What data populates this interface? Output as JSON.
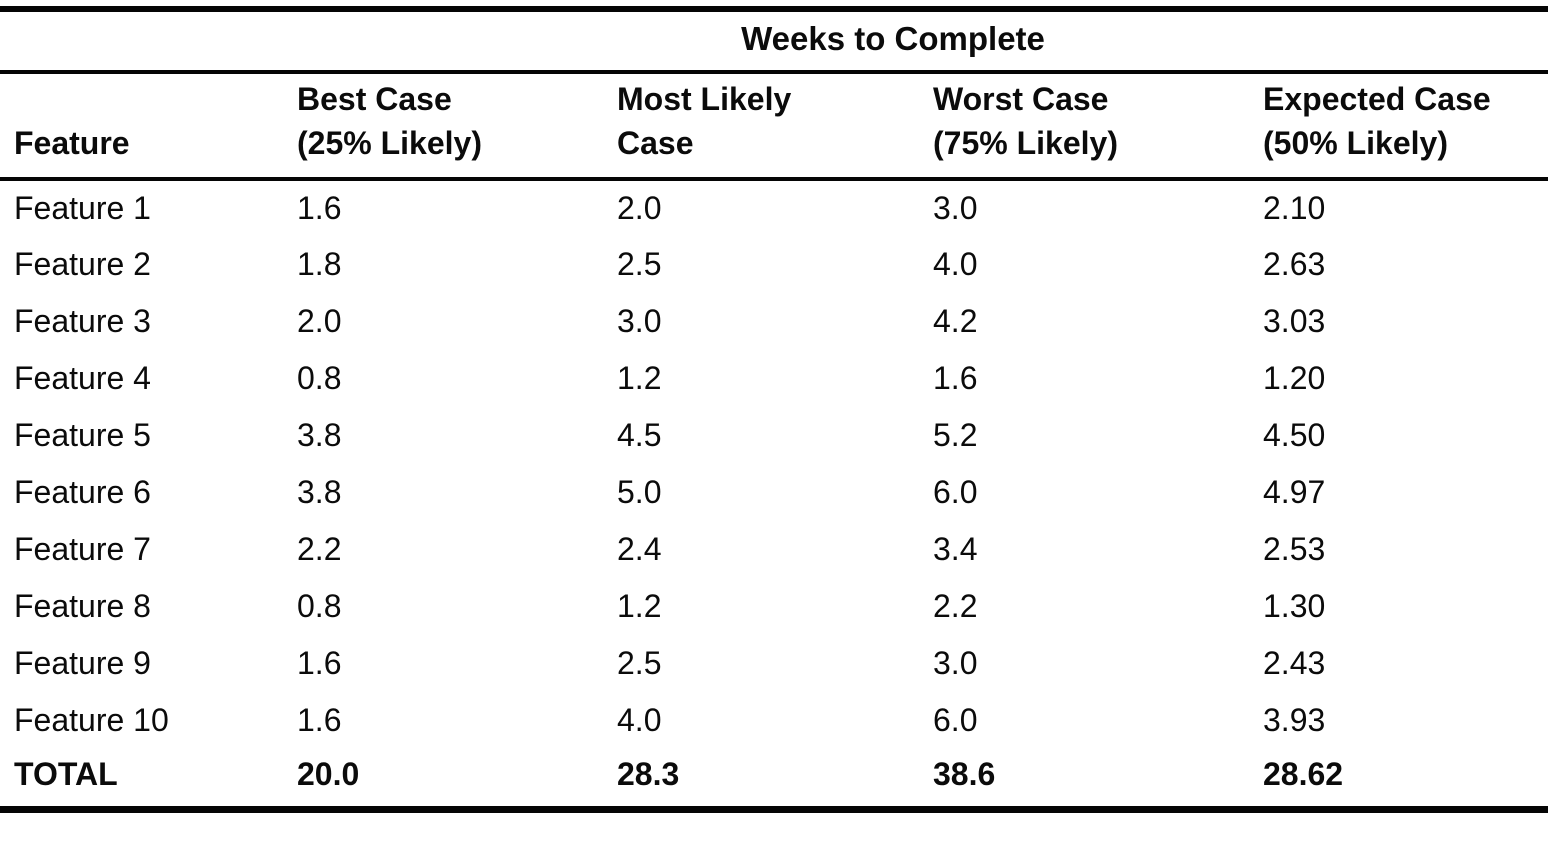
{
  "page": {
    "background": "#ffffff",
    "text_color": "#0b0b0b",
    "rule_color": "#050505"
  },
  "table": {
    "spanner": "Weeks to Complete",
    "columns": [
      {
        "lines": [
          "Feature",
          ""
        ]
      },
      {
        "lines": [
          "Best Case",
          "(25% Likely)"
        ]
      },
      {
        "lines": [
          "Most Likely",
          "Case"
        ]
      },
      {
        "lines": [
          "Worst Case",
          "(75% Likely)"
        ]
      },
      {
        "lines": [
          "Expected Case",
          "(50% Likely)"
        ]
      }
    ],
    "rows": [
      {
        "feature": "Feature 1",
        "best": "1.6",
        "likely": "2.0",
        "worst": "3.0",
        "expected": "2.10"
      },
      {
        "feature": "Feature 2",
        "best": "1.8",
        "likely": "2.5",
        "worst": "4.0",
        "expected": "2.63"
      },
      {
        "feature": "Feature 3",
        "best": "2.0",
        "likely": "3.0",
        "worst": "4.2",
        "expected": "3.03"
      },
      {
        "feature": "Feature 4",
        "best": "0.8",
        "likely": "1.2",
        "worst": "1.6",
        "expected": "1.20"
      },
      {
        "feature": "Feature 5",
        "best": "3.8",
        "likely": "4.5",
        "worst": "5.2",
        "expected": "4.50"
      },
      {
        "feature": "Feature 6",
        "best": "3.8",
        "likely": "5.0",
        "worst": "6.0",
        "expected": "4.97"
      },
      {
        "feature": "Feature 7",
        "best": "2.2",
        "likely": "2.4",
        "worst": "3.4",
        "expected": "2.53"
      },
      {
        "feature": "Feature 8",
        "best": "0.8",
        "likely": "1.2",
        "worst": "2.2",
        "expected": "1.30"
      },
      {
        "feature": "Feature 9",
        "best": "1.6",
        "likely": "2.5",
        "worst": "3.0",
        "expected": "2.43"
      },
      {
        "feature": "Feature 10",
        "best": "1.6",
        "likely": "4.0",
        "worst": "6.0",
        "expected": "3.93"
      }
    ],
    "total": {
      "feature": "TOTAL",
      "best": "20.0",
      "likely": "28.3",
      "worst": "38.6",
      "expected": "28.62"
    }
  },
  "chart_data": {
    "type": "table",
    "title": "Weeks to Complete",
    "categories": [
      "Feature 1",
      "Feature 2",
      "Feature 3",
      "Feature 4",
      "Feature 5",
      "Feature 6",
      "Feature 7",
      "Feature 8",
      "Feature 9",
      "Feature 10",
      "TOTAL"
    ],
    "series": [
      {
        "name": "Best Case (25% Likely)",
        "values": [
          1.6,
          1.8,
          2.0,
          0.8,
          3.8,
          3.8,
          2.2,
          0.8,
          1.6,
          1.6,
          20.0
        ]
      },
      {
        "name": "Most Likely Case",
        "values": [
          2.0,
          2.5,
          3.0,
          1.2,
          4.5,
          5.0,
          2.4,
          1.2,
          2.5,
          4.0,
          28.3
        ]
      },
      {
        "name": "Worst Case (75% Likely)",
        "values": [
          3.0,
          4.0,
          4.2,
          1.6,
          5.2,
          6.0,
          3.4,
          2.2,
          3.0,
          6.0,
          38.6
        ]
      },
      {
        "name": "Expected Case (50% Likely)",
        "values": [
          2.1,
          2.63,
          3.03,
          1.2,
          4.5,
          4.97,
          2.53,
          1.3,
          2.43,
          3.93,
          28.62
        ]
      }
    ]
  }
}
